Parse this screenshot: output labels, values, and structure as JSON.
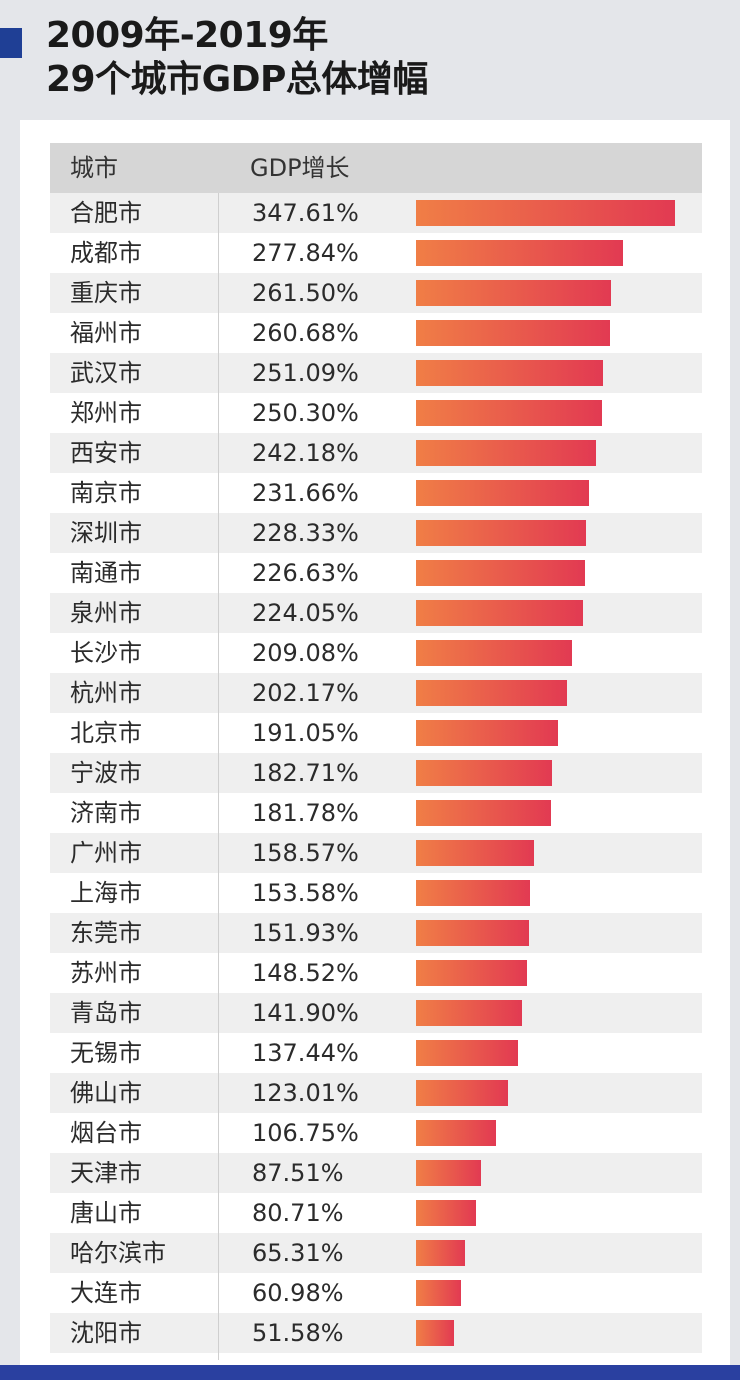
{
  "title_line1": "2009年-2019年",
  "title_line2": "29个城市GDP总体增幅",
  "colors": {
    "accent": "#1f3f95",
    "bar_start": "#f07e46",
    "bar_end": "#e23a52"
  },
  "chart_data": {
    "type": "bar",
    "orientation": "horizontal",
    "title": "2009年-2019年 29个城市GDP总体增幅",
    "columns": [
      "城市",
      "GDP增长"
    ],
    "unit": "%",
    "categories": [
      "合肥市",
      "成都市",
      "重庆市",
      "福州市",
      "武汉市",
      "郑州市",
      "西安市",
      "南京市",
      "深圳市",
      "南通市",
      "泉州市",
      "长沙市",
      "杭州市",
      "北京市",
      "宁波市",
      "济南市",
      "广州市",
      "上海市",
      "东莞市",
      "苏州市",
      "青岛市",
      "无锡市",
      "佛山市",
      "烟台市",
      "天津市",
      "唐山市",
      "哈尔滨市",
      "大连市",
      "沈阳市"
    ],
    "values": [
      347.61,
      277.84,
      261.5,
      260.68,
      251.09,
      250.3,
      242.18,
      231.66,
      228.33,
      226.63,
      224.05,
      209.08,
      202.17,
      191.05,
      182.71,
      181.78,
      158.57,
      153.58,
      151.93,
      148.52,
      141.9,
      137.44,
      123.01,
      106.75,
      87.51,
      80.71,
      65.31,
      60.98,
      51.58
    ],
    "labels": [
      "347.61%",
      "277.84%",
      "261.50%",
      "260.68%",
      "251.09%",
      "250.30%",
      "242.18%",
      "231.66%",
      "228.33%",
      "226.63%",
      "224.05%",
      "209.08%",
      "202.17%",
      "191.05%",
      "182.71%",
      "181.78%",
      "158.57%",
      "153.58%",
      "151.93%",
      "148.52%",
      "141.90%",
      "137.44%",
      "123.01%",
      "106.75%",
      "87.51%",
      "80.71%",
      "65.31%",
      "60.98%",
      "51.58%"
    ],
    "xlim": [
      0,
      347.61
    ]
  }
}
